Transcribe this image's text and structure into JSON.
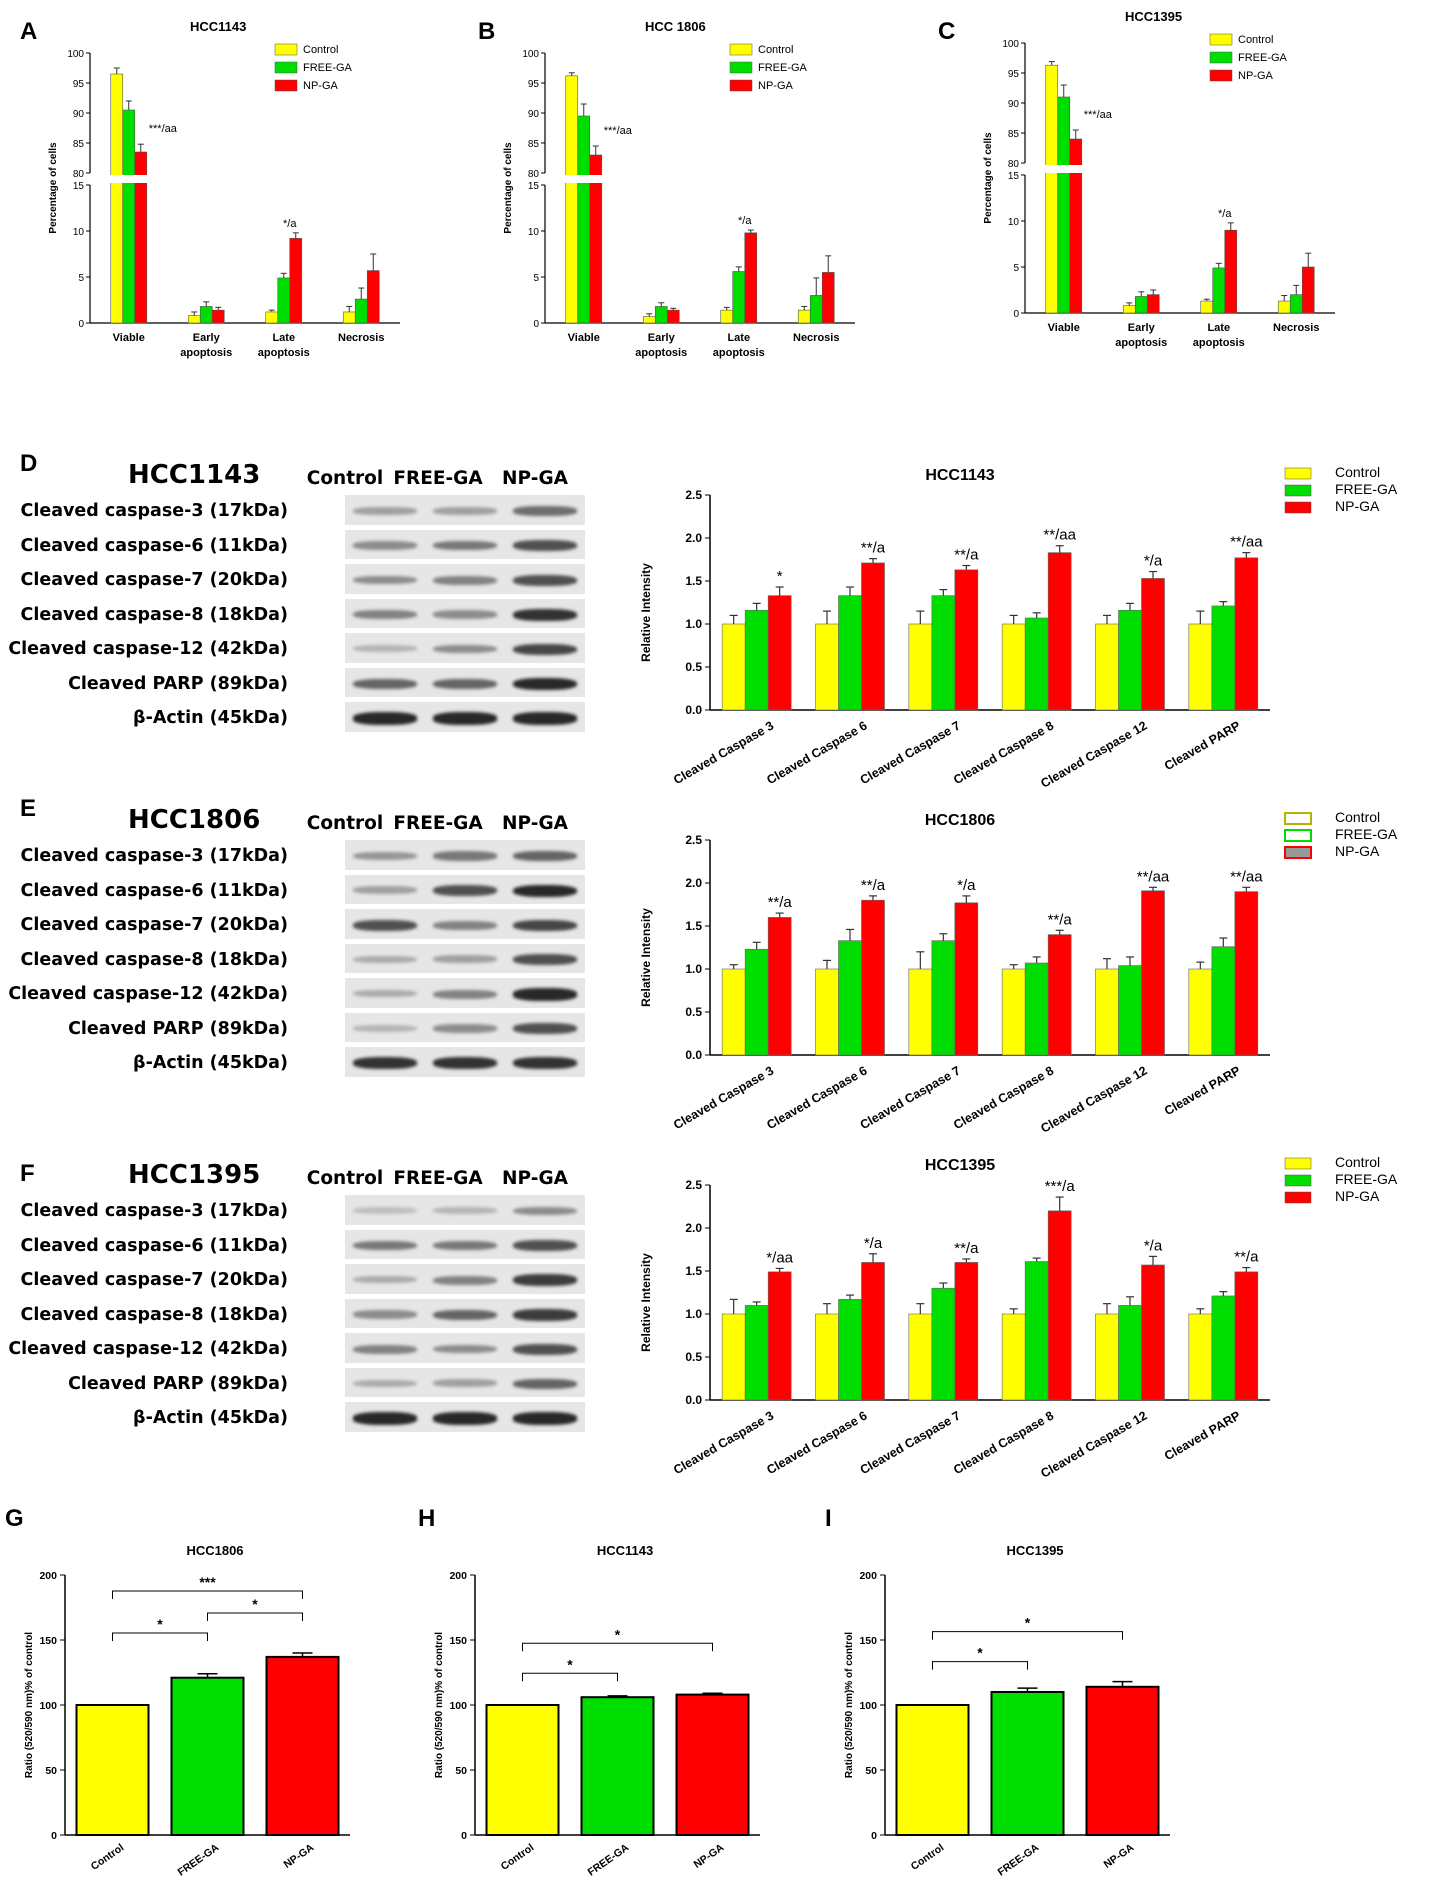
{
  "panel_letters": [
    "A",
    "B",
    "C",
    "D",
    "E",
    "F",
    "G",
    "H",
    "I"
  ],
  "colors": {
    "control": "#ffff00",
    "free": "#00dd00",
    "np": "#ff0000",
    "control_hollow_stroke": "#b3b300"
  },
  "chart_data": [
    {
      "id": "A",
      "type": "bar",
      "title": "HCC1143",
      "ylabel": "Percentage of cells",
      "categories": [
        "Viable",
        "Early apoptosis",
        "Late apoptosis",
        "Necrosis"
      ],
      "axis_breaks": {
        "lower": [
          0,
          15
        ],
        "upper": [
          80,
          100
        ]
      },
      "lower_ticks": [
        "0",
        "5",
        "10",
        "15"
      ],
      "upper_ticks": [
        "80",
        "85",
        "90",
        "95",
        "100"
      ],
      "legend": [
        "Control",
        "FREE-GA",
        "NP-GA"
      ],
      "legend_position": "top-right",
      "series": [
        {
          "name": "Control",
          "values": [
            96.5,
            0.8,
            1.2,
            1.2
          ],
          "errors": [
            1.0,
            0.4,
            0.2,
            0.6
          ]
        },
        {
          "name": "FREE-GA",
          "values": [
            90.5,
            1.8,
            4.9,
            2.6
          ],
          "errors": [
            1.5,
            0.5,
            0.5,
            1.2
          ]
        },
        {
          "name": "NP-GA",
          "values": [
            83.5,
            1.4,
            9.2,
            5.7
          ],
          "errors": [
            1.3,
            0.3,
            0.6,
            1.8
          ]
        }
      ],
      "annotations": [
        {
          "category": "Viable",
          "text": "***/aa"
        },
        {
          "category": "Late apoptosis",
          "text": "*/a"
        }
      ]
    },
    {
      "id": "B",
      "type": "bar",
      "title": "HCC 1806",
      "ylabel": "Percentage of cells",
      "categories": [
        "Viable",
        "Early apoptosis",
        "Late apoptosis",
        "Necrosis"
      ],
      "axis_breaks": {
        "lower": [
          0,
          15
        ],
        "upper": [
          80,
          100
        ]
      },
      "lower_ticks": [
        "0",
        "5",
        "10",
        "15"
      ],
      "upper_ticks": [
        "80",
        "85",
        "90",
        "95",
        "100"
      ],
      "legend": [
        "Control",
        "FREE-GA",
        "NP-GA"
      ],
      "legend_position": "top-right",
      "series": [
        {
          "name": "Control",
          "values": [
            96.2,
            0.7,
            1.4,
            1.4
          ],
          "errors": [
            0.5,
            0.3,
            0.3,
            0.4
          ]
        },
        {
          "name": "FREE-GA",
          "values": [
            89.5,
            1.8,
            5.6,
            3.0
          ],
          "errors": [
            2.0,
            0.4,
            0.5,
            1.9
          ]
        },
        {
          "name": "NP-GA",
          "values": [
            83.0,
            1.4,
            9.8,
            5.5
          ],
          "errors": [
            1.5,
            0.2,
            0.3,
            1.8
          ]
        }
      ],
      "annotations": [
        {
          "category": "Viable",
          "text": "***/aa"
        },
        {
          "category": "Late apoptosis",
          "text": "*/a"
        }
      ]
    },
    {
      "id": "C",
      "type": "bar",
      "title": "HCC1395",
      "ylabel": "Percentage of cells",
      "categories": [
        "Viable",
        "Early apoptosis",
        "Late apoptosis",
        "Necrosis"
      ],
      "axis_breaks": {
        "lower": [
          0,
          15
        ],
        "upper": [
          80,
          100
        ]
      },
      "lower_ticks": [
        "0",
        "5",
        "10",
        "15"
      ],
      "upper_ticks": [
        "80",
        "85",
        "90",
        "95",
        "100"
      ],
      "legend": [
        "Control",
        "FREE-GA",
        "NP-GA"
      ],
      "legend_position": "top-right",
      "series": [
        {
          "name": "Control",
          "values": [
            96.3,
            0.8,
            1.3,
            1.3
          ],
          "errors": [
            0.6,
            0.3,
            0.2,
            0.6
          ]
        },
        {
          "name": "FREE-GA",
          "values": [
            91.0,
            1.8,
            4.9,
            2.0
          ],
          "errors": [
            2.0,
            0.5,
            0.5,
            1.0
          ]
        },
        {
          "name": "NP-GA",
          "values": [
            84.0,
            2.0,
            9.0,
            5.0
          ],
          "errors": [
            1.5,
            0.5,
            0.8,
            1.5
          ]
        }
      ],
      "annotations": [
        {
          "category": "Viable",
          "text": "***/aa"
        },
        {
          "category": "Late apoptosis",
          "text": "*/a"
        }
      ]
    },
    {
      "id": "D",
      "type": "bar",
      "title": "HCC1143",
      "ylabel": "Relative Intensity",
      "ylim": [
        0,
        2.5
      ],
      "ticks": [
        "0.0",
        "0.5",
        "1.0",
        "1.5",
        "2.0",
        "2.5"
      ],
      "categories": [
        "Cleaved Caspase 3",
        "Cleaved Caspase 6",
        "Cleaved Caspase 7",
        "Cleaved Caspase 8",
        "Cleaved Caspase 12",
        "Cleaved PARP"
      ],
      "legend": [
        "Control",
        "FREE-GA",
        "NP-GA"
      ],
      "legend_position": "top-right",
      "series": [
        {
          "name": "Control",
          "values": [
            1.0,
            1.0,
            1.0,
            1.0,
            1.0,
            1.0
          ],
          "errors": [
            0.1,
            0.15,
            0.15,
            0.1,
            0.1,
            0.15
          ]
        },
        {
          "name": "FREE-GA",
          "values": [
            1.16,
            1.33,
            1.33,
            1.07,
            1.16,
            1.21
          ],
          "errors": [
            0.08,
            0.1,
            0.07,
            0.06,
            0.08,
            0.05
          ]
        },
        {
          "name": "NP-GA",
          "values": [
            1.33,
            1.71,
            1.63,
            1.83,
            1.53,
            1.77
          ],
          "errors": [
            0.1,
            0.05,
            0.05,
            0.08,
            0.08,
            0.06
          ]
        }
      ],
      "annotations": [
        "*",
        "**/a",
        "**/a",
        "**/aa",
        "*/a",
        "**/aa"
      ]
    },
    {
      "id": "E",
      "type": "bar",
      "title": "HCC1806",
      "ylabel": "Relative Intensity",
      "ylim": [
        0,
        2.5
      ],
      "ticks": [
        "0.0",
        "0.5",
        "1.0",
        "1.5",
        "2.0",
        "2.5"
      ],
      "categories": [
        "Cleaved Caspase 3",
        "Cleaved Caspase 6",
        "Cleaved Caspase 7",
        "Cleaved Caspase 8",
        "Cleaved Caspase 12",
        "Cleaved PARP"
      ],
      "legend": [
        "Control",
        "FREE-GA",
        "NP-GA"
      ],
      "legend_position": "top-right",
      "legend_style": "hollow",
      "series": [
        {
          "name": "Control",
          "values": [
            1.0,
            1.0,
            1.0,
            1.0,
            1.0,
            1.0
          ],
          "errors": [
            0.05,
            0.1,
            0.2,
            0.05,
            0.12,
            0.08
          ]
        },
        {
          "name": "FREE-GA",
          "values": [
            1.23,
            1.33,
            1.33,
            1.07,
            1.04,
            1.26
          ],
          "errors": [
            0.08,
            0.13,
            0.08,
            0.07,
            0.1,
            0.1
          ]
        },
        {
          "name": "NP-GA",
          "values": [
            1.6,
            1.8,
            1.77,
            1.4,
            1.91,
            1.9
          ],
          "errors": [
            0.05,
            0.05,
            0.08,
            0.05,
            0.04,
            0.05
          ]
        }
      ],
      "annotations": [
        "**/a",
        "**/a",
        "*/a",
        "**/a",
        "**/aa",
        "**/aa"
      ]
    },
    {
      "id": "F",
      "type": "bar",
      "title": "HCC1395",
      "ylabel": "Relative Intensity",
      "ylim": [
        0,
        2.5
      ],
      "ticks": [
        "0.0",
        "0.5",
        "1.0",
        "1.5",
        "2.0",
        "2.5"
      ],
      "categories": [
        "Cleaved Caspase 3",
        "Cleaved Caspase 6",
        "Cleaved Caspase 7",
        "Cleaved Caspase 8",
        "Cleaved Caspase 12",
        "Cleaved PARP"
      ],
      "legend": [
        "Control",
        "FREE-GA",
        "NP-GA"
      ],
      "legend_position": "top-right",
      "series": [
        {
          "name": "Control",
          "values": [
            1.0,
            1.0,
            1.0,
            1.0,
            1.0,
            1.0
          ],
          "errors": [
            0.17,
            0.12,
            0.12,
            0.06,
            0.12,
            0.06
          ]
        },
        {
          "name": "FREE-GA",
          "values": [
            1.1,
            1.17,
            1.3,
            1.61,
            1.1,
            1.21
          ],
          "errors": [
            0.04,
            0.05,
            0.06,
            0.04,
            0.1,
            0.05
          ]
        },
        {
          "name": "NP-GA",
          "values": [
            1.49,
            1.6,
            1.6,
            2.2,
            1.57,
            1.49
          ],
          "errors": [
            0.04,
            0.1,
            0.04,
            0.16,
            0.1,
            0.05
          ]
        }
      ],
      "annotations": [
        "*/aa",
        "*/a",
        "**/a",
        "***/a",
        "*/a",
        "**/a"
      ]
    },
    {
      "id": "G",
      "type": "bar",
      "title": "HCC1806",
      "ylabel": "Ratio (520/590 nm)% of control",
      "ylim": [
        0,
        200
      ],
      "ticks": [
        "0",
        "50",
        "100",
        "150",
        "200"
      ],
      "categories": [
        "Control",
        "FREE-GA",
        "NP-GA"
      ],
      "values": [
        100,
        121,
        137
      ],
      "errors": [
        0,
        3,
        3
      ],
      "brackets": [
        {
          "from": 0,
          "to": 1,
          "text": "*"
        },
        {
          "from": 0,
          "to": 2,
          "text": "***"
        },
        {
          "from": 1,
          "to": 2,
          "text": "*"
        }
      ]
    },
    {
      "id": "H",
      "type": "bar",
      "title": "HCC1143",
      "ylabel": "Ratio (520/590 nm)% of control",
      "ylim": [
        0,
        200
      ],
      "ticks": [
        "0",
        "50",
        "100",
        "150",
        "200"
      ],
      "categories": [
        "Control",
        "FREE-GA",
        "NP-GA"
      ],
      "values": [
        100,
        106,
        108
      ],
      "errors": [
        0,
        1,
        1
      ],
      "brackets": [
        {
          "from": 0,
          "to": 1,
          "text": "*"
        },
        {
          "from": 0,
          "to": 2,
          "text": "*"
        }
      ]
    },
    {
      "id": "I",
      "type": "bar",
      "title": "HCC1395",
      "ylabel": "Ratio (520/590 nm)% of control",
      "ylim": [
        0,
        200
      ],
      "ticks": [
        "0",
        "50",
        "100",
        "150",
        "200"
      ],
      "categories": [
        "Control",
        "FREE-GA",
        "NP-GA"
      ],
      "values": [
        100,
        110,
        114
      ],
      "errors": [
        0,
        3,
        4
      ],
      "brackets": [
        {
          "from": 0,
          "to": 1,
          "text": "*"
        },
        {
          "from": 0,
          "to": 2,
          "text": "*"
        }
      ]
    }
  ],
  "blots": [
    {
      "id": "D",
      "title": "HCC1143",
      "columns": [
        "Control",
        "FREE-GA",
        "NP-GA"
      ],
      "rows": [
        {
          "label": "Cleaved caspase-3 (17kDa)",
          "bands": [
            0.35,
            0.35,
            0.6
          ]
        },
        {
          "label": "Cleaved caspase-6 (11kDa)",
          "bands": [
            0.45,
            0.55,
            0.75
          ]
        },
        {
          "label": "Cleaved caspase-7 (20kDa)",
          "bands": [
            0.45,
            0.5,
            0.75
          ]
        },
        {
          "label": "Cleaved caspase-8 (18kDa)",
          "bands": [
            0.5,
            0.45,
            0.9
          ]
        },
        {
          "label": "Cleaved caspase-12 (42kDa)",
          "bands": [
            0.25,
            0.45,
            0.8
          ]
        },
        {
          "label": "Cleaved PARP (89kDa)",
          "bands": [
            0.65,
            0.65,
            0.95
          ]
        },
        {
          "label": "β-Actin (45kDa)",
          "bands": [
            0.95,
            0.95,
            0.95
          ]
        }
      ]
    },
    {
      "id": "E",
      "title": "HCC1806",
      "columns": [
        "Control",
        "FREE-GA",
        "NP-GA"
      ],
      "rows": [
        {
          "label": "Cleaved caspase-3 (17kDa)",
          "bands": [
            0.4,
            0.55,
            0.65
          ]
        },
        {
          "label": "Cleaved caspase-6 (11kDa)",
          "bands": [
            0.35,
            0.75,
            0.95
          ]
        },
        {
          "label": "Cleaved caspase-7 (20kDa)",
          "bands": [
            0.75,
            0.5,
            0.8
          ]
        },
        {
          "label": "Cleaved caspase-8 (18kDa)",
          "bands": [
            0.3,
            0.35,
            0.75
          ]
        },
        {
          "label": "Cleaved caspase-12 (42kDa)",
          "bands": [
            0.3,
            0.5,
            0.95
          ]
        },
        {
          "label": "Cleaved PARP (89kDa)",
          "bands": [
            0.25,
            0.45,
            0.75
          ]
        },
        {
          "label": "β-Actin (45kDa)",
          "bands": [
            0.9,
            0.9,
            0.9
          ]
        }
      ]
    },
    {
      "id": "F",
      "title": "HCC1395",
      "columns": [
        "Control",
        "FREE-GA",
        "NP-GA"
      ],
      "rows": [
        {
          "label": "Cleaved caspase-3 (17kDa)",
          "bands": [
            0.2,
            0.25,
            0.45
          ]
        },
        {
          "label": "Cleaved caspase-6 (11kDa)",
          "bands": [
            0.55,
            0.55,
            0.75
          ]
        },
        {
          "label": "Cleaved caspase-7 (20kDa)",
          "bands": [
            0.3,
            0.5,
            0.85
          ]
        },
        {
          "label": "Cleaved caspase-8 (18kDa)",
          "bands": [
            0.45,
            0.65,
            0.85
          ]
        },
        {
          "label": "Cleaved caspase-12 (42kDa)",
          "bands": [
            0.5,
            0.45,
            0.75
          ]
        },
        {
          "label": "Cleaved PARP (89kDa)",
          "bands": [
            0.3,
            0.35,
            0.65
          ]
        },
        {
          "label": "β-Actin (45kDa)",
          "bands": [
            0.95,
            0.95,
            0.95
          ]
        }
      ]
    }
  ]
}
